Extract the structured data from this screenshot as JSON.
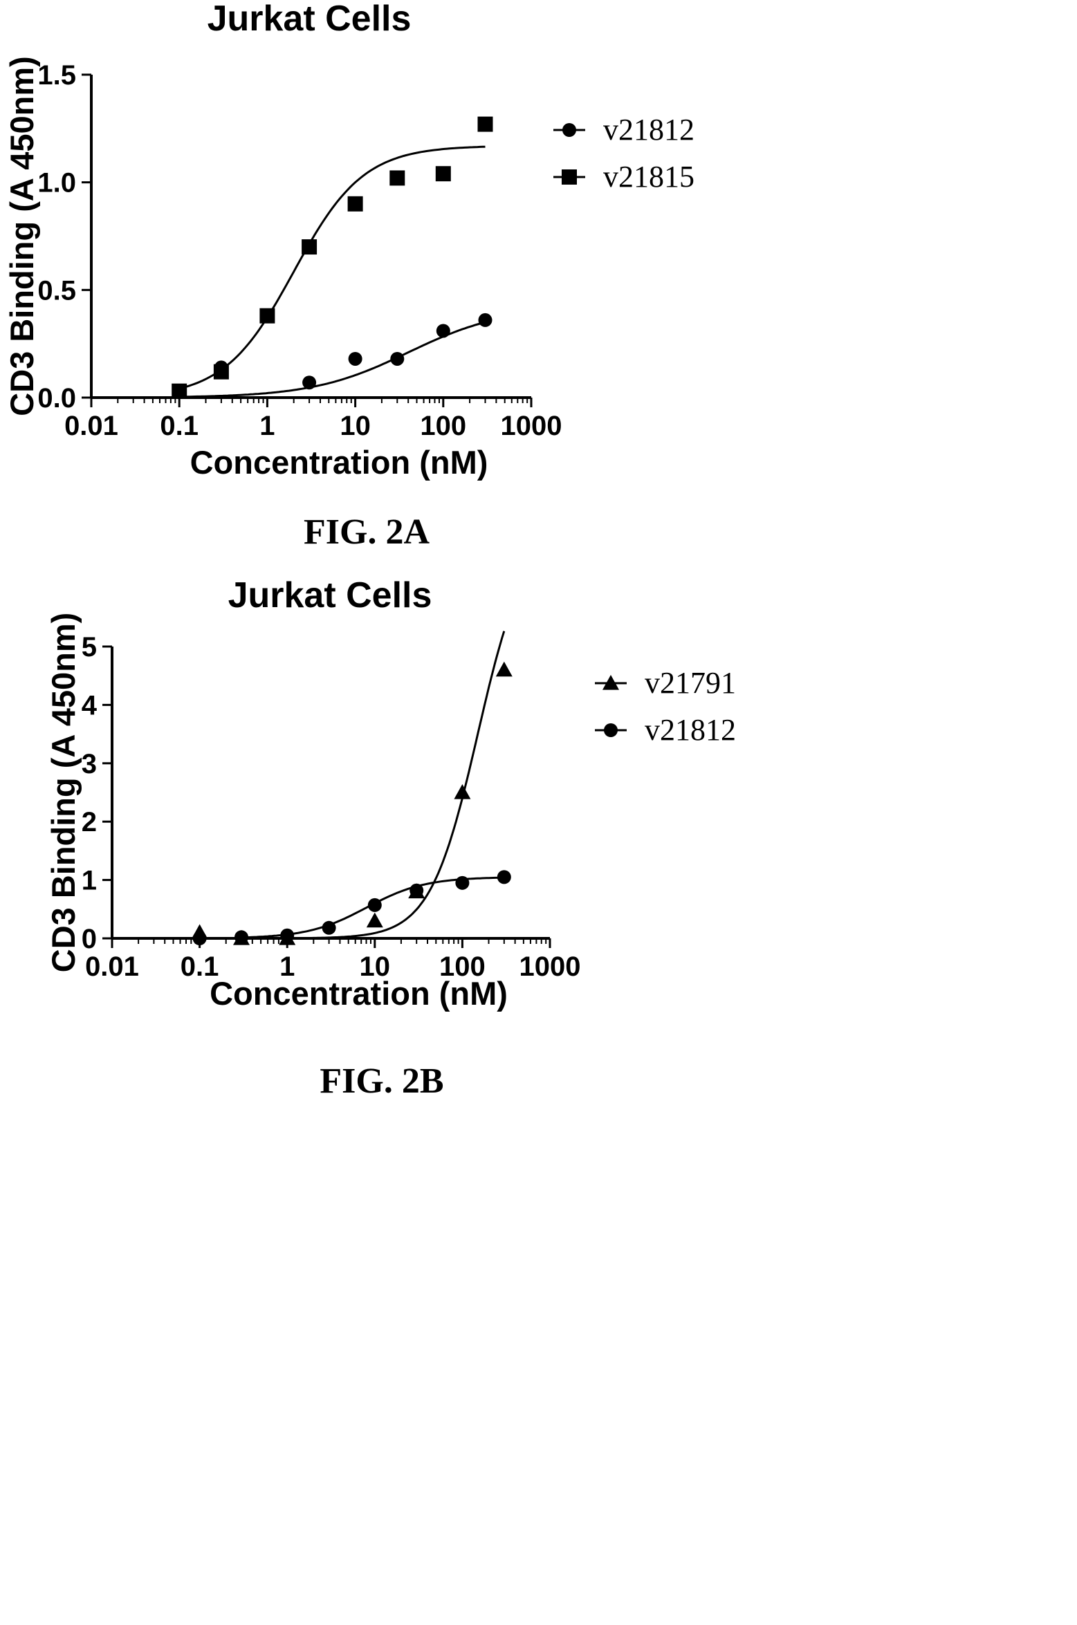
{
  "chart_data": [
    {
      "type": "scatter",
      "title": "Jurkat Cells",
      "xlabel": "Concentration (nM)",
      "ylabel": "CD3 Binding (A 450nm)",
      "x_scale": "log",
      "xlim": [
        0.01,
        1000
      ],
      "ylim": [
        0,
        1.5
      ],
      "x_ticks": [
        0.01,
        0.1,
        1,
        10,
        100,
        1000
      ],
      "x_tick_labels": [
        "0.01",
        "0.1",
        "1",
        "10",
        "100",
        "1000"
      ],
      "y_ticks": [
        0,
        0.5,
        1,
        1.5
      ],
      "y_tick_labels": [
        "0.0",
        "0.5",
        "1.0",
        "1.5"
      ],
      "legend_position": "right",
      "caption": "FIG. 2A",
      "series": [
        {
          "name": "v21812",
          "marker": "circle",
          "x": [
            0.3,
            3,
            10,
            30,
            100,
            300
          ],
          "y": [
            0.14,
            0.07,
            0.18,
            0.18,
            0.31,
            0.36
          ],
          "fit": {
            "bottom": 0,
            "top": 0.42,
            "ec50": 40,
            "hill": 0.8
          }
        },
        {
          "name": "v21815",
          "marker": "square",
          "x": [
            0.1,
            0.3,
            1,
            3,
            10,
            30,
            100,
            300
          ],
          "y": [
            0.03,
            0.12,
            0.38,
            0.7,
            0.9,
            1.02,
            1.04,
            1.27
          ],
          "fit": {
            "bottom": 0,
            "top": 1.17,
            "ec50": 2,
            "hill": 1.1
          }
        }
      ]
    },
    {
      "type": "scatter",
      "title": "Jurkat Cells",
      "xlabel": "Concentration (nM)",
      "ylabel": "CD3 Binding (A 450nm)",
      "x_scale": "log",
      "xlim": [
        0.01,
        1000
      ],
      "ylim": [
        0,
        5
      ],
      "x_ticks": [
        0.01,
        0.1,
        1,
        10,
        100,
        1000
      ],
      "x_tick_labels": [
        "0.01",
        "0.1",
        "1",
        "10",
        "100",
        "1000"
      ],
      "y_ticks": [
        0,
        1,
        2,
        3,
        4,
        5
      ],
      "y_tick_labels": [
        "0",
        "1",
        "2",
        "3",
        "4",
        "5"
      ],
      "legend_position": "right",
      "caption": "FIG. 2B",
      "series": [
        {
          "name": "v21791",
          "marker": "triangle",
          "x": [
            0.1,
            0.3,
            1,
            10,
            30,
            100,
            300
          ],
          "y": [
            0.1,
            0.0,
            0.0,
            0.3,
            0.8,
            2.5,
            4.6
          ],
          "fit": {
            "bottom": 0,
            "top": 7.0,
            "ec50": 150,
            "hill": 1.6
          }
        },
        {
          "name": "v21812",
          "marker": "circle",
          "x": [
            0.1,
            0.3,
            1,
            3,
            10,
            30,
            100,
            300
          ],
          "y": [
            0.0,
            0.02,
            0.05,
            0.18,
            0.57,
            0.82,
            0.95,
            1.05
          ],
          "fit": {
            "bottom": 0,
            "top": 1.05,
            "ec50": 8,
            "hill": 1.3
          }
        }
      ]
    }
  ]
}
